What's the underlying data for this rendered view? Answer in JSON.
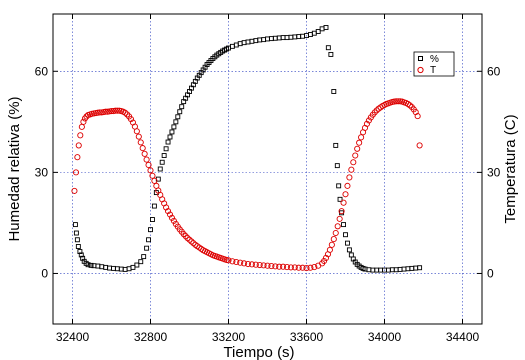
{
  "chart_data": {
    "type": "scatter",
    "xlabel": "Tiempo (s)",
    "ylabel_left": "Humedad relativa (%)",
    "ylabel_right": "Temperatura (C)",
    "xlim": [
      32300,
      34500
    ],
    "ylim": [
      -15,
      77
    ],
    "x_ticks": [
      "32400",
      "32800",
      "33200",
      "33600",
      "34000",
      "34400"
    ],
    "y_left_ticks": [
      "0",
      "30",
      "60"
    ],
    "y_right_ticks": [
      "0",
      "30",
      "60"
    ],
    "grid": true,
    "legend_position": "top-right",
    "series": [
      {
        "name": "%",
        "color": "#000000",
        "marker": "square",
        "points": [
          [
            32415,
            14.5
          ],
          [
            32420,
            12
          ],
          [
            32425,
            10
          ],
          [
            32430,
            8
          ],
          [
            32438,
            6.5
          ],
          [
            32445,
            5.5
          ],
          [
            32452,
            4.5
          ],
          [
            32460,
            3.6
          ],
          [
            32470,
            3
          ],
          [
            32480,
            2.6
          ],
          [
            32495,
            2.4
          ],
          [
            32510,
            2.3
          ],
          [
            32530,
            2.2
          ],
          [
            32550,
            2
          ],
          [
            32570,
            1.8
          ],
          [
            32590,
            1.6
          ],
          [
            32610,
            1.5
          ],
          [
            32630,
            1.4
          ],
          [
            32650,
            1.3
          ],
          [
            32670,
            1.2
          ],
          [
            32690,
            1.4
          ],
          [
            32710,
            1.8
          ],
          [
            32730,
            2.5
          ],
          [
            32750,
            3.5
          ],
          [
            32765,
            5
          ],
          [
            32780,
            7.5
          ],
          [
            32790,
            10
          ],
          [
            32800,
            13
          ],
          [
            32810,
            16
          ],
          [
            32820,
            20
          ],
          [
            32830,
            24
          ],
          [
            32840,
            28
          ],
          [
            32850,
            31
          ],
          [
            32860,
            33
          ],
          [
            32870,
            35
          ],
          [
            32880,
            37
          ],
          [
            32890,
            39
          ],
          [
            32900,
            40.5
          ],
          [
            32910,
            42
          ],
          [
            32920,
            43.5
          ],
          [
            32930,
            45
          ],
          [
            32940,
            46.5
          ],
          [
            32950,
            48
          ],
          [
            32960,
            49.5
          ],
          [
            32970,
            51
          ],
          [
            32980,
            52
          ],
          [
            32990,
            53
          ],
          [
            33000,
            54
          ],
          [
            33010,
            55
          ],
          [
            33020,
            56
          ],
          [
            33030,
            57
          ],
          [
            33040,
            58
          ],
          [
            33050,
            58.8
          ],
          [
            33060,
            59.6
          ],
          [
            33070,
            60.4
          ],
          [
            33080,
            61.2
          ],
          [
            33090,
            62
          ],
          [
            33100,
            62.6
          ],
          [
            33110,
            63.2
          ],
          [
            33120,
            63.8
          ],
          [
            33130,
            64.3
          ],
          [
            33140,
            64.8
          ],
          [
            33150,
            65.2
          ],
          [
            33160,
            65.6
          ],
          [
            33170,
            66
          ],
          [
            33180,
            66.3
          ],
          [
            33190,
            66.6
          ],
          [
            33200,
            66.9
          ],
          [
            33220,
            67.4
          ],
          [
            33240,
            67.8
          ],
          [
            33260,
            68.2
          ],
          [
            33280,
            68.5
          ],
          [
            33300,
            68.7
          ],
          [
            33320,
            68.9
          ],
          [
            33340,
            69.1
          ],
          [
            33360,
            69.3
          ],
          [
            33380,
            69.4
          ],
          [
            33400,
            69.6
          ],
          [
            33420,
            69.7
          ],
          [
            33440,
            69.8
          ],
          [
            33460,
            69.9
          ],
          [
            33480,
            70
          ],
          [
            33500,
            70
          ],
          [
            33520,
            70.1
          ],
          [
            33540,
            70.2
          ],
          [
            33560,
            70.3
          ],
          [
            33580,
            70.4
          ],
          [
            33600,
            70.6
          ],
          [
            33620,
            70.9
          ],
          [
            33640,
            71.3
          ],
          [
            33660,
            71.8
          ],
          [
            33680,
            72.6
          ],
          [
            33700,
            73
          ],
          [
            33712,
            67
          ],
          [
            33725,
            65
          ],
          [
            33740,
            54
          ],
          [
            33750,
            38
          ],
          [
            33758,
            32
          ],
          [
            33765,
            26
          ],
          [
            33772,
            22
          ],
          [
            33780,
            18
          ],
          [
            33790,
            14.5
          ],
          [
            33800,
            11.5
          ],
          [
            33810,
            9
          ],
          [
            33820,
            7
          ],
          [
            33830,
            5.5
          ],
          [
            33840,
            4.3
          ],
          [
            33850,
            3.4
          ],
          [
            33860,
            2.7
          ],
          [
            33870,
            2.2
          ],
          [
            33880,
            1.8
          ],
          [
            33890,
            1.5
          ],
          [
            33900,
            1.3
          ],
          [
            33920,
            1.1
          ],
          [
            33940,
            1
          ],
          [
            33960,
            1
          ],
          [
            33980,
            1
          ],
          [
            34000,
            1
          ],
          [
            34020,
            1
          ],
          [
            34040,
            1.1
          ],
          [
            34060,
            1.1
          ],
          [
            34080,
            1.2
          ],
          [
            34100,
            1.3
          ],
          [
            34120,
            1.4
          ],
          [
            34140,
            1.5
          ],
          [
            34160,
            1.6
          ],
          [
            34180,
            1.7
          ]
        ]
      },
      {
        "name": "T",
        "color": "#dd0000",
        "marker": "circle",
        "points": [
          [
            32410,
            24.5
          ],
          [
            32418,
            30
          ],
          [
            32425,
            34.5
          ],
          [
            32432,
            38
          ],
          [
            32440,
            41
          ],
          [
            32448,
            43.5
          ],
          [
            32456,
            45
          ],
          [
            32464,
            46
          ],
          [
            32472,
            46.6
          ],
          [
            32480,
            47
          ],
          [
            32490,
            47.2
          ],
          [
            32500,
            47.4
          ],
          [
            32510,
            47.5
          ],
          [
            32520,
            47.6
          ],
          [
            32530,
            47.7
          ],
          [
            32540,
            47.8
          ],
          [
            32550,
            47.8
          ],
          [
            32560,
            47.9
          ],
          [
            32570,
            48
          ],
          [
            32580,
            48
          ],
          [
            32590,
            48.1
          ],
          [
            32600,
            48.2
          ],
          [
            32610,
            48.2
          ],
          [
            32620,
            48.3
          ],
          [
            32630,
            48.3
          ],
          [
            32640,
            48.3
          ],
          [
            32650,
            48.2
          ],
          [
            32660,
            48
          ],
          [
            32670,
            47.7
          ],
          [
            32680,
            47.2
          ],
          [
            32690,
            46.6
          ],
          [
            32700,
            45.8
          ],
          [
            32710,
            44.8
          ],
          [
            32720,
            43.6
          ],
          [
            32730,
            42.2
          ],
          [
            32740,
            40.6
          ],
          [
            32750,
            38.9
          ],
          [
            32760,
            37.2
          ],
          [
            32770,
            35.5
          ],
          [
            32780,
            33.8
          ],
          [
            32790,
            32.2
          ],
          [
            32800,
            30.6
          ],
          [
            32810,
            29
          ],
          [
            32820,
            27.5
          ],
          [
            32830,
            26
          ],
          [
            32840,
            24.6
          ],
          [
            32850,
            23.3
          ],
          [
            32860,
            22
          ],
          [
            32870,
            20.8
          ],
          [
            32880,
            19.6
          ],
          [
            32890,
            18.5
          ],
          [
            32900,
            17.5
          ],
          [
            32910,
            16.5
          ],
          [
            32920,
            15.6
          ],
          [
            32930,
            14.7
          ],
          [
            32940,
            13.9
          ],
          [
            32950,
            13.1
          ],
          [
            32960,
            12.4
          ],
          [
            32970,
            11.7
          ],
          [
            32980,
            11.1
          ],
          [
            32990,
            10.5
          ],
          [
            33000,
            10
          ],
          [
            33010,
            9.5
          ],
          [
            33020,
            9
          ],
          [
            33030,
            8.5
          ],
          [
            33040,
            8.1
          ],
          [
            33050,
            7.7
          ],
          [
            33060,
            7.3
          ],
          [
            33070,
            6.9
          ],
          [
            33080,
            6.6
          ],
          [
            33090,
            6.3
          ],
          [
            33100,
            6
          ],
          [
            33110,
            5.7
          ],
          [
            33120,
            5.4
          ],
          [
            33130,
            5.2
          ],
          [
            33140,
            5
          ],
          [
            33150,
            4.8
          ],
          [
            33160,
            4.6
          ],
          [
            33170,
            4.4
          ],
          [
            33180,
            4.2
          ],
          [
            33190,
            4
          ],
          [
            33200,
            3.9
          ],
          [
            33220,
            3.6
          ],
          [
            33240,
            3.4
          ],
          [
            33260,
            3.2
          ],
          [
            33280,
            3
          ],
          [
            33300,
            2.8
          ],
          [
            33320,
            2.7
          ],
          [
            33340,
            2.6
          ],
          [
            33360,
            2.5
          ],
          [
            33380,
            2.4
          ],
          [
            33400,
            2.3
          ],
          [
            33420,
            2.2
          ],
          [
            33440,
            2.1
          ],
          [
            33460,
            2
          ],
          [
            33480,
            2
          ],
          [
            33500,
            1.9
          ],
          [
            33520,
            1.8
          ],
          [
            33540,
            1.8
          ],
          [
            33560,
            1.7
          ],
          [
            33580,
            1.7
          ],
          [
            33600,
            1.6
          ],
          [
            33620,
            1.7
          ],
          [
            33640,
            1.9
          ],
          [
            33660,
            2.3
          ],
          [
            33680,
            3
          ],
          [
            33690,
            3.7
          ],
          [
            33700,
            4.6
          ],
          [
            33710,
            5.7
          ],
          [
            33720,
            7
          ],
          [
            33730,
            8.5
          ],
          [
            33740,
            10.2
          ],
          [
            33750,
            12
          ],
          [
            33760,
            14
          ],
          [
            33770,
            16.2
          ],
          [
            33780,
            18.5
          ],
          [
            33790,
            21
          ],
          [
            33800,
            23.5
          ],
          [
            33810,
            26
          ],
          [
            33820,
            28.5
          ],
          [
            33830,
            30.8
          ],
          [
            33840,
            33
          ],
          [
            33850,
            35
          ],
          [
            33860,
            37
          ],
          [
            33870,
            38.8
          ],
          [
            33880,
            40.4
          ],
          [
            33890,
            41.9
          ],
          [
            33900,
            43.2
          ],
          [
            33910,
            44.4
          ],
          [
            33920,
            45.4
          ],
          [
            33930,
            46.3
          ],
          [
            33940,
            47.1
          ],
          [
            33950,
            47.8
          ],
          [
            33960,
            48.4
          ],
          [
            33970,
            48.9
          ],
          [
            33980,
            49.3
          ],
          [
            33990,
            49.7
          ],
          [
            34000,
            50
          ],
          [
            34010,
            50.3
          ],
          [
            34020,
            50.5
          ],
          [
            34030,
            50.7
          ],
          [
            34040,
            50.9
          ],
          [
            34050,
            51
          ],
          [
            34060,
            51.1
          ],
          [
            34070,
            51.1
          ],
          [
            34080,
            51.1
          ],
          [
            34090,
            51
          ],
          [
            34100,
            50.8
          ],
          [
            34110,
            50.6
          ],
          [
            34120,
            50.3
          ],
          [
            34130,
            49.9
          ],
          [
            34140,
            49.4
          ],
          [
            34150,
            48.7
          ],
          [
            34160,
            47.9
          ],
          [
            34170,
            46.7
          ],
          [
            34180,
            38
          ]
        ]
      }
    ]
  }
}
